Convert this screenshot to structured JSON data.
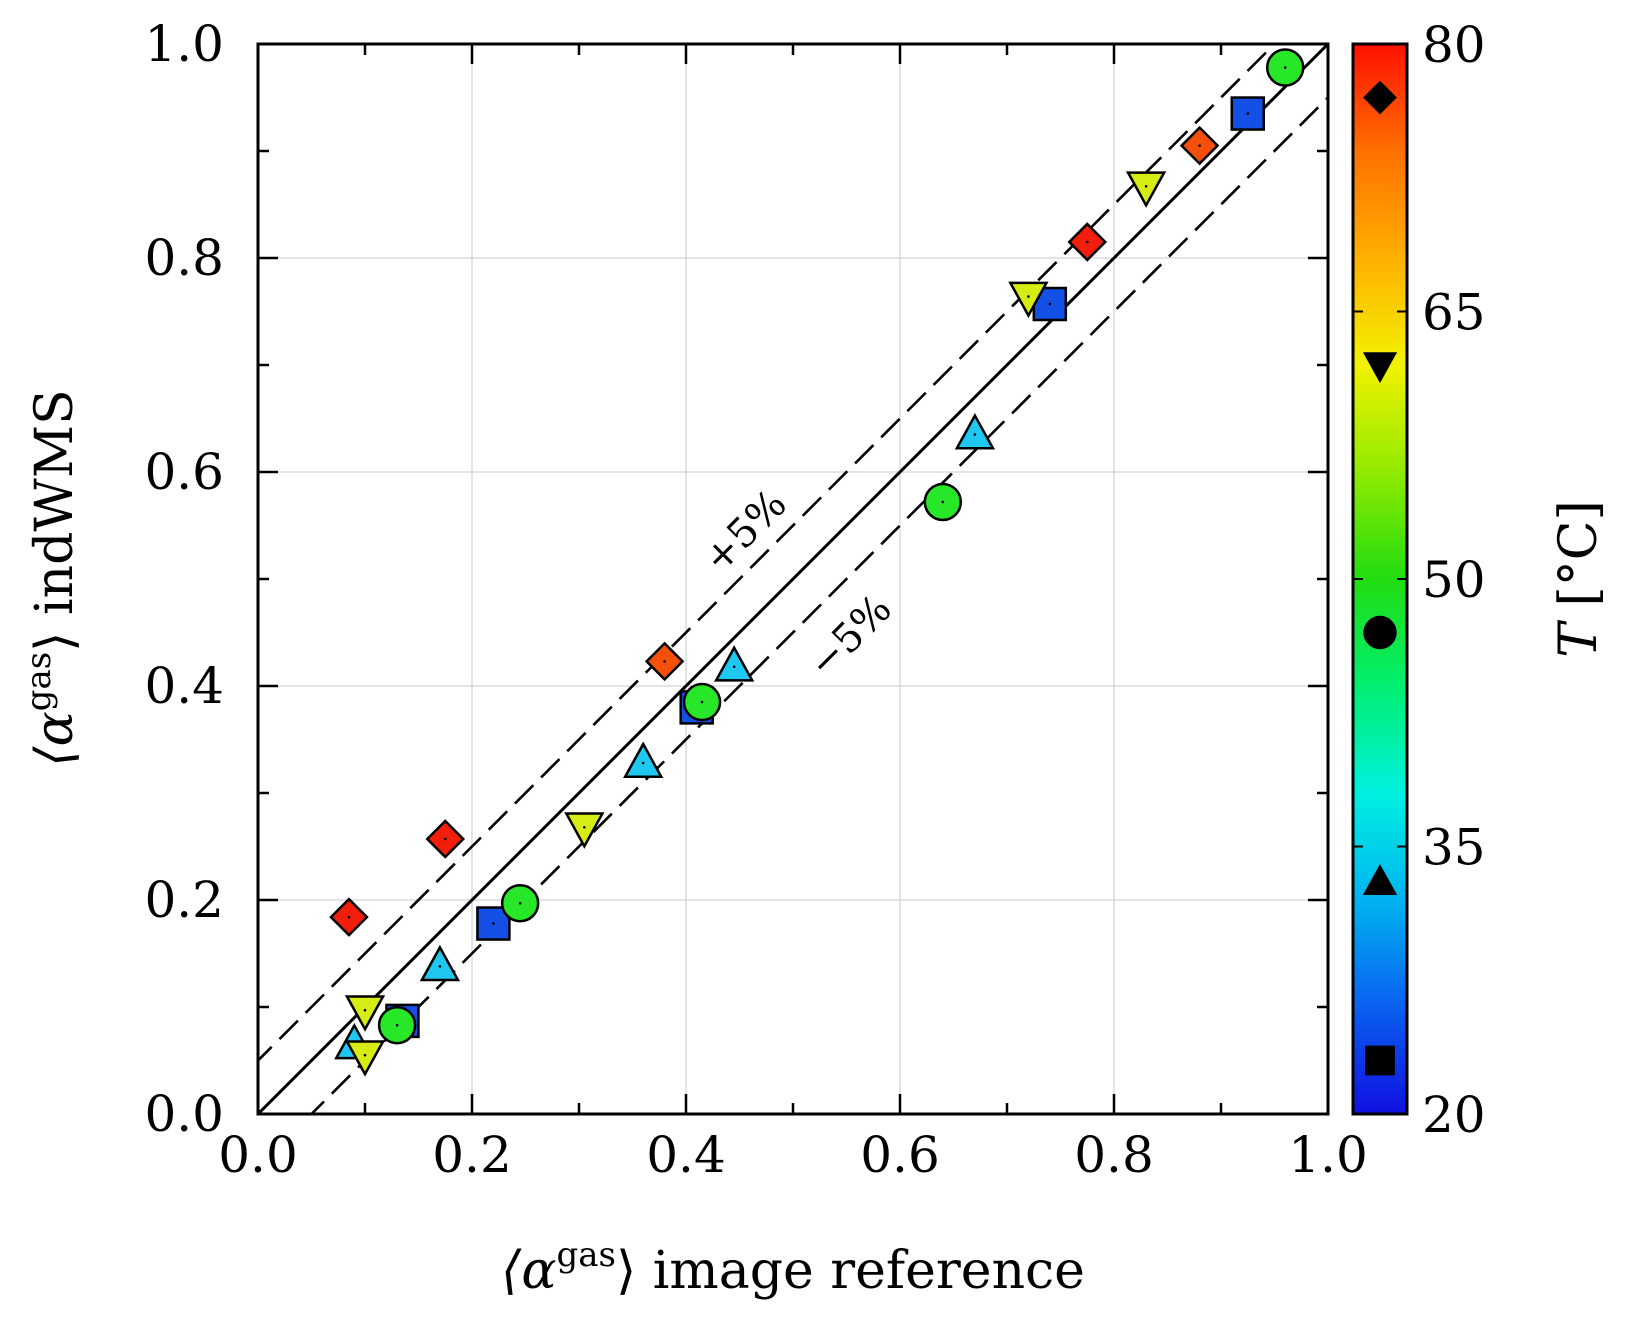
{
  "chart_data": {
    "type": "scatter",
    "title": "",
    "xlabel": {
      "prefix": "⟨α",
      "sup": "gas",
      "suffix": "⟩ image reference"
    },
    "ylabel": {
      "prefix": "⟨α",
      "sup": "gas",
      "suffix": "⟩ indWMS"
    },
    "xlim": [
      0,
      1
    ],
    "ylim": [
      0,
      1
    ],
    "grid": true,
    "x_ticks": [
      "0.0",
      "0.2",
      "0.4",
      "0.6",
      "0.8",
      "1.0"
    ],
    "y_ticks": [
      "0.0",
      "0.2",
      "0.4",
      "0.6",
      "0.8",
      "1.0"
    ],
    "reference_lines": [
      {
        "name": "identity",
        "offset": 0.0,
        "style": "solid"
      },
      {
        "name": "plus5",
        "offset": 0.05,
        "style": "dashed",
        "label": "+5%"
      },
      {
        "name": "minus5",
        "offset": -0.05,
        "style": "dashed",
        "label": "−5%"
      }
    ],
    "colorbar": {
      "label_var": "T",
      "label_unit": "[°C]",
      "min": 20,
      "max": 80,
      "ticks": [
        "20",
        "35",
        "50",
        "65",
        "80"
      ],
      "stops": [
        "#1010e0",
        "#0a60f0",
        "#00b4f0",
        "#00f0e0",
        "#00ef70",
        "#22dd10",
        "#90ea00",
        "#f2f200",
        "#ffb000",
        "#ff7000",
        "#ff1000"
      ],
      "markers": [
        {
          "shape": "square",
          "temp": 23
        },
        {
          "shape": "triangle-up",
          "temp": 33
        },
        {
          "shape": "circle",
          "temp": 47
        },
        {
          "shape": "triangle-down",
          "temp": 62
        },
        {
          "shape": "diamond",
          "temp": 77
        }
      ]
    },
    "series": [
      {
        "name": "square",
        "marker": "square",
        "color": "#1450e6",
        "points": [
          [
            0.135,
            0.087
          ],
          [
            0.22,
            0.178
          ],
          [
            0.41,
            0.38
          ],
          [
            0.74,
            0.757
          ],
          [
            0.925,
            0.935
          ]
        ]
      },
      {
        "name": "triangle-up",
        "marker": "triangle-up",
        "color": "#1ec8f0",
        "points": [
          [
            0.09,
            0.065
          ],
          [
            0.17,
            0.138
          ],
          [
            0.36,
            0.328
          ],
          [
            0.445,
            0.418
          ],
          [
            0.67,
            0.635
          ]
        ]
      },
      {
        "name": "circle",
        "marker": "circle",
        "color": "#28e628",
        "points": [
          [
            0.13,
            0.083
          ],
          [
            0.245,
            0.197
          ],
          [
            0.415,
            0.385
          ],
          [
            0.64,
            0.572
          ],
          [
            0.96,
            0.978
          ]
        ]
      },
      {
        "name": "triangle-down",
        "marker": "triangle-down",
        "color": "#d7eb14",
        "points": [
          [
            0.1,
            0.055
          ],
          [
            0.1,
            0.097
          ],
          [
            0.305,
            0.268
          ],
          [
            0.72,
            0.764
          ],
          [
            0.83,
            0.867
          ]
        ]
      },
      {
        "name": "diamond-red",
        "marker": "diamond",
        "color": "#f01e0a",
        "points": [
          [
            0.085,
            0.184
          ],
          [
            0.175,
            0.257
          ],
          [
            0.775,
            0.815
          ]
        ]
      },
      {
        "name": "diamond-orange",
        "marker": "diamond",
        "color": "#f5500a",
        "points": [
          [
            0.38,
            0.423
          ],
          [
            0.88,
            0.905
          ]
        ]
      }
    ]
  }
}
